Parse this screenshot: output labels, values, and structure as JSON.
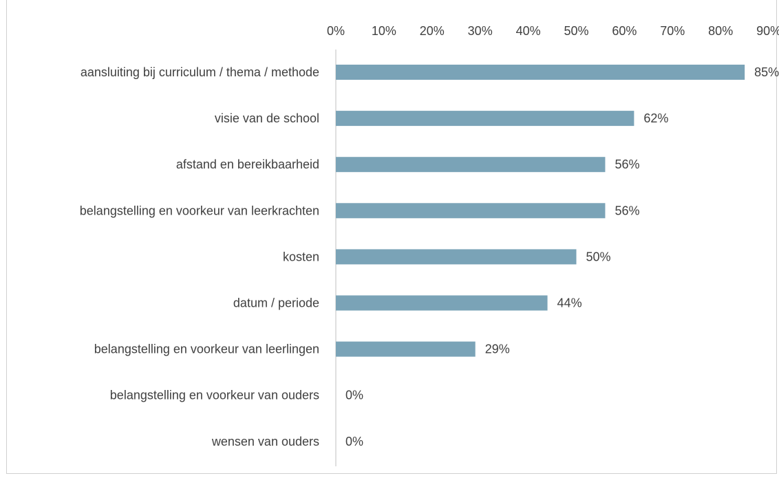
{
  "chart_data": {
    "type": "bar",
    "orientation": "horizontal",
    "title": "",
    "xlabel": "",
    "ylabel": "",
    "xlim": [
      0,
      90
    ],
    "x_ticks": [
      "0%",
      "10%",
      "20%",
      "30%",
      "40%",
      "50%",
      "60%",
      "70%",
      "80%",
      "90%"
    ],
    "x_axis_position": "top",
    "grid": false,
    "legend": "none",
    "bar_color": "#7aa3b7",
    "categories": [
      "aansluiting bij curriculum / thema / methode",
      "visie van de school",
      "afstand en bereikbaarheid",
      "belangstelling en voorkeur van leerkrachten",
      "kosten",
      "datum / periode",
      "belangstelling en voorkeur van leerlingen",
      "belangstelling en voorkeur van ouders",
      "wensen van ouders"
    ],
    "values": [
      85,
      62,
      56,
      56,
      50,
      44,
      29,
      0,
      0
    ],
    "data_labels": [
      "85%",
      "62%",
      "56%",
      "56%",
      "50%",
      "44%",
      "29%",
      "0%",
      "0%"
    ]
  }
}
